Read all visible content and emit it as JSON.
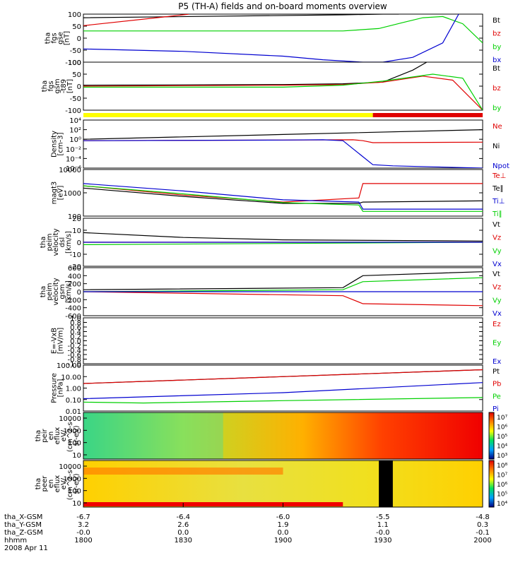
{
  "title": "P5 (TH-A) fields and on-board moments overview",
  "colors": {
    "black": "#000000",
    "red": "#e00000",
    "green": "#00d000",
    "blue": "#0000d0",
    "yellow": "#ffff00"
  },
  "chart_data": [
    {
      "type": "line",
      "id": "fgs_gse",
      "ylabel": [
        "tha",
        "fgs",
        "gse",
        "[nT]"
      ],
      "ylim": [
        -100,
        100
      ],
      "yticks": [
        "100",
        "50",
        "0",
        "-50",
        "-100"
      ],
      "series": [
        {
          "name": "Bt",
          "color": "black",
          "x": [
            1800,
            1930,
            1950,
            1958
          ],
          "y": [
            85,
            97,
            100,
            100
          ]
        },
        {
          "name": "bz",
          "color": "red",
          "x": [
            1800,
            1840,
            1853
          ],
          "y": [
            52,
            88,
            100
          ]
        },
        {
          "name": "by",
          "color": "green",
          "x": [
            1800,
            1930,
            1948,
            1960,
            1970,
            1980,
            1990,
            2000
          ],
          "y": [
            30,
            30,
            40,
            65,
            85,
            90,
            60,
            -20
          ]
        },
        {
          "name": "bx",
          "color": "blue",
          "x": [
            1800,
            1850,
            1900,
            1920,
            1940,
            1950,
            1965,
            1980,
            1988
          ],
          "y": [
            -45,
            -55,
            -75,
            -90,
            -100,
            -100,
            -80,
            -20,
            100
          ]
        }
      ]
    },
    {
      "type": "line",
      "id": "fgs_gsm",
      "ylabel": [
        "tha",
        "fgs",
        "gsm",
        "-t89",
        "[nT]"
      ],
      "ylim": [
        -120,
        120
      ],
      "yticks": [
        "100",
        "50",
        "0",
        "-50",
        "-100"
      ],
      "series": [
        {
          "name": "Bt",
          "color": "black",
          "x": [
            1800,
            1900,
            1930,
            1950,
            1965,
            1972
          ],
          "y": [
            5,
            8,
            12,
            20,
            80,
            120
          ]
        },
        {
          "name": "bz",
          "color": "red",
          "x": [
            1800,
            1900,
            1930,
            1950,
            1970,
            1985,
            2000
          ],
          "y": [
            0,
            5,
            8,
            20,
            50,
            30,
            -120
          ]
        },
        {
          "name": "by",
          "color": "green",
          "x": [
            1800,
            1830,
            1900,
            1930,
            1950,
            1975,
            1990,
            2000
          ],
          "y": [
            -5,
            -5,
            -5,
            5,
            25,
            60,
            40,
            -120
          ]
        }
      ]
    },
    {
      "type": "line",
      "id": "density",
      "ylabel": [
        "Density",
        "[cm-3]"
      ],
      "scale": "log",
      "ylim": [
        1e-06,
        10000
      ],
      "yticks": [
        "10⁴",
        "10²",
        "10⁰",
        "10⁻²",
        "10⁻⁴",
        "10⁻⁶"
      ],
      "series": [
        {
          "name": "Ne",
          "color": "red",
          "x": [
            1800,
            1900,
            1935,
            1940,
            1945,
            2000
          ],
          "y": [
            0.5,
            0.7,
            0.8,
            0.5,
            0.2,
            0.25
          ]
        },
        {
          "name": "Ni",
          "color": "black",
          "x": [
            1800,
            1900,
            2000
          ],
          "y": [
            1,
            10,
            100
          ]
        },
        {
          "name": "Npot",
          "color": "blue",
          "x": [
            1800,
            1900,
            1920,
            1930,
            1945,
            1955,
            2000
          ],
          "y": [
            0.5,
            0.7,
            0.8,
            0.5,
            5e-06,
            3e-06,
            1e-06
          ]
        }
      ]
    },
    {
      "type": "line",
      "id": "temperature",
      "ylabel": [
        "magt3",
        "[eV]"
      ],
      "scale": "log",
      "ylim": [
        100,
        10000
      ],
      "yticks": [
        "10000",
        "1000",
        "100"
      ],
      "series": [
        {
          "name": "Te⊥",
          "color": "red",
          "x": [
            1800,
            1850,
            1900,
            1938,
            1940,
            2000
          ],
          "y": [
            2000,
            800,
            400,
            600,
            2500,
            2500
          ]
        },
        {
          "name": "Te∥",
          "color": "black",
          "x": [
            1800,
            1850,
            1900,
            1938,
            1940,
            2000
          ],
          "y": [
            1600,
            700,
            350,
            350,
            400,
            450
          ]
        },
        {
          "name": "Ti⊥",
          "color": "blue",
          "x": [
            1800,
            1850,
            1900,
            1938,
            1940,
            2000
          ],
          "y": [
            2500,
            1200,
            500,
            400,
            200,
            200
          ]
        },
        {
          "name": "Ti∥",
          "color": "green",
          "x": [
            1800,
            1850,
            1900,
            1938,
            1940,
            2000
          ],
          "y": [
            2000,
            900,
            380,
            300,
            160,
            160
          ]
        }
      ]
    },
    {
      "type": "line",
      "id": "velocity_dsl",
      "ylabel": [
        "tha",
        "peim",
        "velocity",
        "dsl",
        "[km/s]"
      ],
      "ylim": [
        -20,
        20
      ],
      "yticks": [
        "20",
        "10",
        "0",
        "-10",
        "-20"
      ],
      "series": [
        {
          "name": "Vt",
          "color": "black",
          "x": [
            1800,
            1850,
            1900,
            2000
          ],
          "y": [
            8,
            4,
            2,
            1
          ]
        },
        {
          "name": "Vz",
          "color": "red",
          "x": [
            1800,
            2000
          ],
          "y": [
            0,
            0
          ]
        },
        {
          "name": "Vy",
          "color": "green",
          "x": [
            1800,
            2000
          ],
          "y": [
            -2,
            0
          ]
        },
        {
          "name": "Vx",
          "color": "blue",
          "x": [
            1800,
            2000
          ],
          "y": [
            0,
            0
          ]
        }
      ]
    },
    {
      "type": "line",
      "id": "velocity_gsm",
      "ylabel": [
        "tha",
        "peim",
        "velocity",
        "gsm",
        "[km/s]"
      ],
      "ylim": [
        -600,
        600
      ],
      "yticks": [
        "600",
        "400",
        "200",
        "0",
        "-200",
        "-400",
        "-600"
      ],
      "series": [
        {
          "name": "Vt",
          "color": "black",
          "x": [
            1800,
            1930,
            1940,
            2000
          ],
          "y": [
            50,
            100,
            400,
            500
          ]
        },
        {
          "name": "Vz",
          "color": "red",
          "x": [
            1800,
            1930,
            1940,
            2000
          ],
          "y": [
            0,
            -100,
            -300,
            -350
          ]
        },
        {
          "name": "Vy",
          "color": "green",
          "x": [
            1800,
            1930,
            1940,
            2000
          ],
          "y": [
            0,
            50,
            250,
            350
          ]
        },
        {
          "name": "Vx",
          "color": "blue",
          "x": [
            1800,
            1930,
            1940,
            2000
          ],
          "y": [
            0,
            0,
            0,
            0
          ]
        }
      ]
    },
    {
      "type": "line",
      "id": "efield",
      "ylabel": [
        "E=-VxB",
        "[mV/m]"
      ],
      "ylim": [
        -1,
        1
      ],
      "yticks": [
        "1.0",
        "0.8",
        "0.6",
        "0.4",
        "0.2",
        "0.0",
        "-0.2",
        "-0.4",
        "-0.6",
        "-0.8",
        "-1.0"
      ],
      "series": [
        {
          "name": "Ez",
          "color": "red",
          "x": [],
          "y": []
        },
        {
          "name": "Ey",
          "color": "green",
          "x": [],
          "y": []
        },
        {
          "name": "Ex",
          "color": "blue",
          "x": [],
          "y": []
        }
      ]
    },
    {
      "type": "line",
      "id": "pressure",
      "ylabel": [
        "Pressure",
        "[nPa]"
      ],
      "scale": "log",
      "ylim": [
        0.01,
        100
      ],
      "yticks": [
        "100.00",
        "10.00",
        "1.00",
        "0.10",
        "0.01"
      ],
      "series": [
        {
          "name": "Pt",
          "color": "black",
          "x": [
            1800,
            2000
          ],
          "y": [
            2.5,
            40
          ]
        },
        {
          "name": "Pb",
          "color": "red",
          "x": [
            1800,
            2000
          ],
          "y": [
            2.5,
            40
          ]
        },
        {
          "name": "Pe",
          "color": "green",
          "x": [
            1800,
            1830,
            1900,
            2000
          ],
          "y": [
            0.06,
            0.05,
            0.08,
            0.15
          ]
        },
        {
          "name": "Pi",
          "color": "blue",
          "x": [
            1800,
            1900,
            2000
          ],
          "y": [
            0.12,
            0.4,
            3
          ]
        }
      ]
    },
    {
      "type": "heatmap",
      "id": "peir_eflux",
      "ylabel": [
        "tha",
        "peir",
        "en",
        "eflux",
        "eV/",
        "(cm^2-s-",
        "sr-eV)"
      ],
      "yticks": [
        "10000",
        "1000",
        "100",
        "10"
      ],
      "cbar_labels": [
        "10⁷",
        "10⁶",
        "10⁵",
        "10⁴",
        "10³"
      ]
    },
    {
      "type": "heatmap",
      "id": "peer_eflux",
      "ylabel": [
        "tha",
        "peer",
        "en",
        "eflux",
        "eV/",
        "(cm^2-s-",
        "sr-eV)"
      ],
      "yticks": [
        "10000",
        "1000",
        "100",
        "10"
      ],
      "cbar_labels": [
        "10⁸",
        "10⁷",
        "10⁶",
        "10⁵",
        "10⁴"
      ]
    }
  ],
  "xaxis": {
    "rows": [
      {
        "label": "tha_X-GSM",
        "values": [
          "-6.7",
          "-6.4",
          "-6.0",
          "-5.5",
          "-4.8"
        ]
      },
      {
        "label": "tha_Y-GSM",
        "values": [
          "3.2",
          "2.6",
          "1.9",
          "1.1",
          "0.3"
        ]
      },
      {
        "label": "tha_Z-GSM",
        "values": [
          "-0.0",
          "0.0",
          "0.0",
          "-0.0",
          "-0.1"
        ]
      },
      {
        "label": "hhmm",
        "values": [
          "1800",
          "1830",
          "1900",
          "1930",
          "2000"
        ]
      }
    ],
    "date": "2008 Apr 11",
    "range": [
      1800,
      2000
    ]
  }
}
